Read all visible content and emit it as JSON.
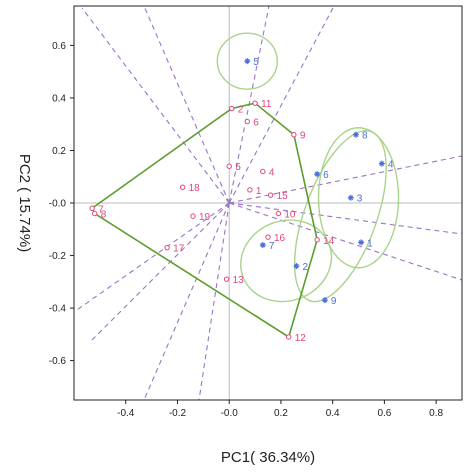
{
  "chart_data": {
    "type": "scatter",
    "title": "",
    "xlabel": "PC1( 36.34%)",
    "ylabel": "PC2 ( 15.74%)",
    "xlim": [
      -0.6,
      0.9
    ],
    "ylim": [
      -0.75,
      0.75
    ],
    "x_ticks": [
      -0.4,
      -0.2,
      0.0,
      0.2,
      0.4,
      0.6,
      0.8
    ],
    "x_tick_labels": [
      "-0.4",
      "-0.2",
      "-0.0",
      "0.2",
      "0.4",
      "0.6",
      "0.8"
    ],
    "y_ticks": [
      0.6,
      0.4,
      0.2,
      0.0,
      -0.2,
      -0.4,
      -0.6
    ],
    "y_tick_labels": [
      "0.6",
      "0.4",
      "0.2",
      "-0.0",
      "-0.2",
      "-0.4",
      "-0.6"
    ],
    "grid": false,
    "colors": {
      "group_red": "#e0457a",
      "group_blue": "#4a6fd8",
      "hull": "#5a9e2f",
      "ellipse": "#a9d38a",
      "loading_lines": "#9b72c9",
      "zero_lines": "#bbbbbb"
    },
    "series": [
      {
        "group": "red",
        "points": [
          {
            "label": "1",
            "x": 0.08,
            "y": 0.05
          },
          {
            "label": "2",
            "x": 0.01,
            "y": 0.36
          },
          {
            "label": "4",
            "x": 0.13,
            "y": 0.12
          },
          {
            "label": "5",
            "x": 0.0,
            "y": 0.14
          },
          {
            "label": "6",
            "x": 0.07,
            "y": 0.31
          },
          {
            "label": "7",
            "x": -0.53,
            "y": -0.02
          },
          {
            "label": "8",
            "x": -0.52,
            "y": -0.04
          },
          {
            "label": "9",
            "x": 0.25,
            "y": 0.26
          },
          {
            "label": "10",
            "x": 0.19,
            "y": -0.04
          },
          {
            "label": "11",
            "x": 0.1,
            "y": 0.38
          },
          {
            "label": "12",
            "x": 0.23,
            "y": -0.51
          },
          {
            "label": "13",
            "x": -0.01,
            "y": -0.29
          },
          {
            "label": "14",
            "x": 0.34,
            "y": -0.14
          },
          {
            "label": "15",
            "x": 0.16,
            "y": 0.03
          },
          {
            "label": "16",
            "x": 0.15,
            "y": -0.13
          },
          {
            "label": "17",
            "x": -0.24,
            "y": -0.17
          },
          {
            "label": "18",
            "x": -0.18,
            "y": 0.06
          },
          {
            "label": "19",
            "x": -0.14,
            "y": -0.05
          }
        ]
      },
      {
        "group": "blue",
        "points": [
          {
            "label": "1",
            "x": 0.51,
            "y": -0.15
          },
          {
            "label": "2",
            "x": 0.26,
            "y": -0.24
          },
          {
            "label": "3",
            "x": 0.47,
            "y": 0.02
          },
          {
            "label": "4",
            "x": 0.59,
            "y": 0.15
          },
          {
            "label": "5",
            "x": 0.07,
            "y": 0.54
          },
          {
            "label": "6",
            "x": 0.34,
            "y": 0.11
          },
          {
            "label": "7",
            "x": 0.13,
            "y": -0.16
          },
          {
            "label": "8",
            "x": 0.49,
            "y": 0.26
          },
          {
            "label": "9",
            "x": 0.37,
            "y": -0.37
          }
        ]
      }
    ]
  }
}
